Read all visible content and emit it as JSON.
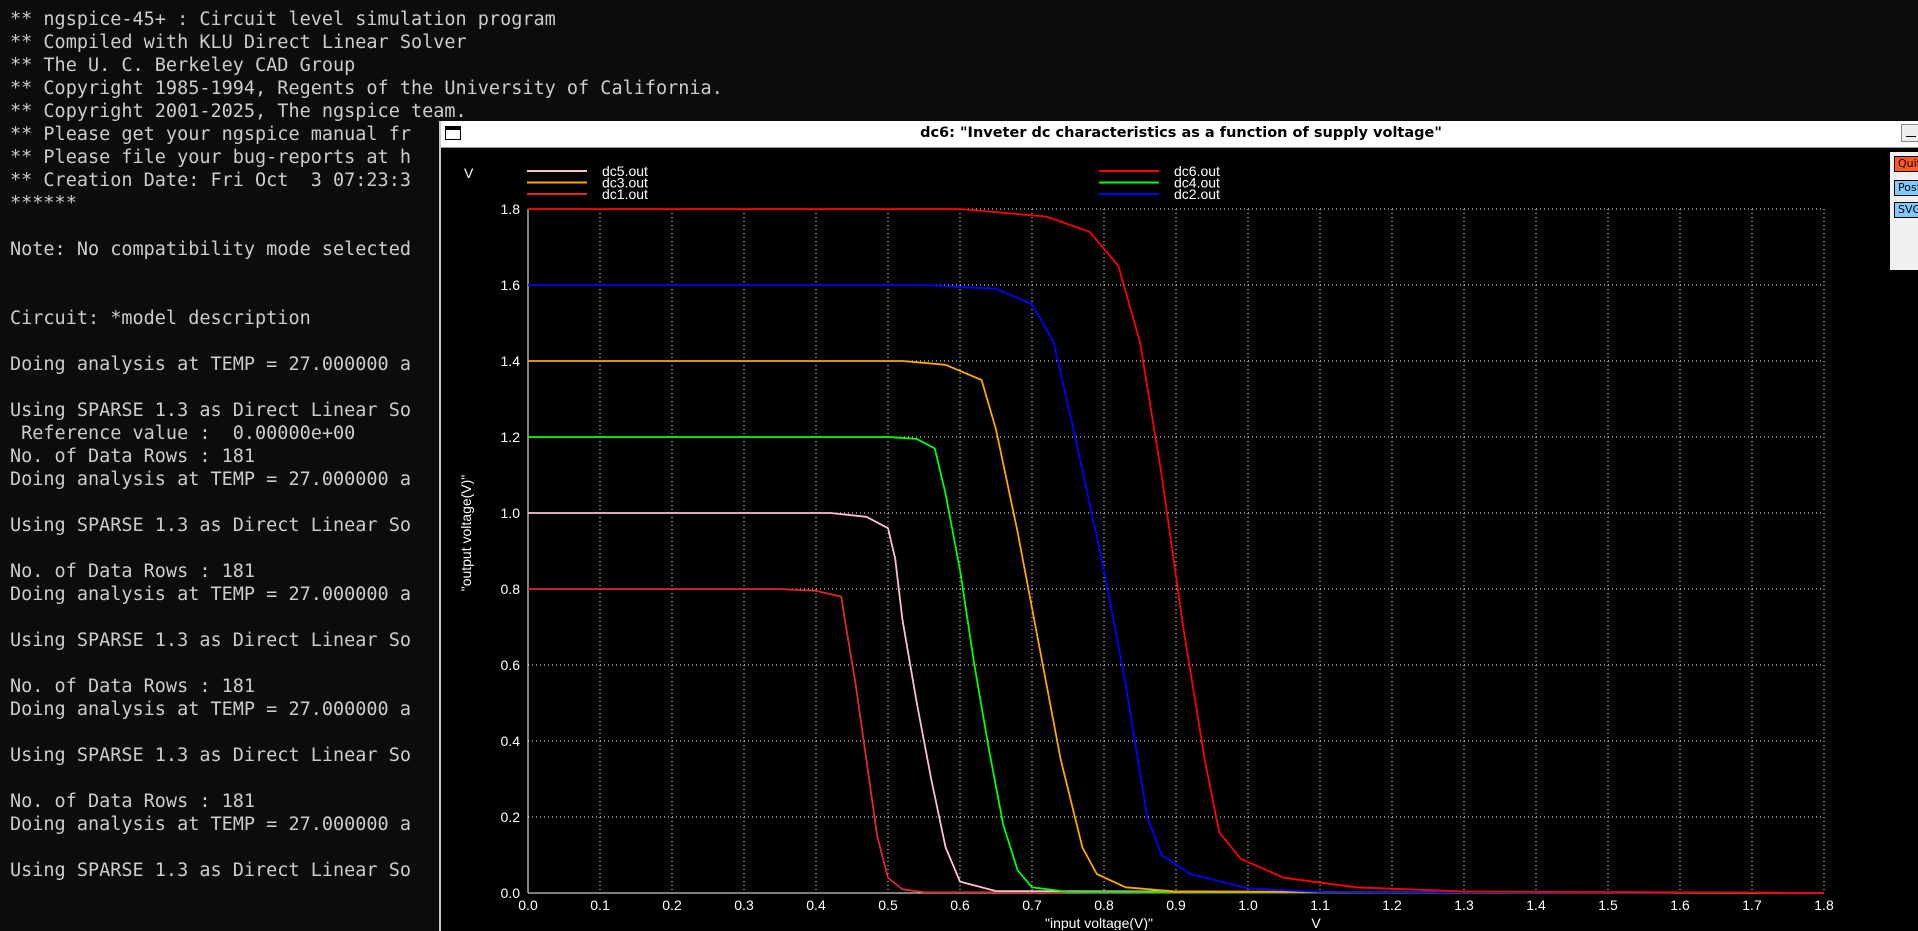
{
  "terminal": {
    "lines": [
      "** ngspice-45+ : Circuit level simulation program",
      "** Compiled with KLU Direct Linear Solver",
      "** The U. C. Berkeley CAD Group",
      "** Copyright 1985-1994, Regents of the University of California.",
      "** Copyright 2001-2025, The ngspice team.",
      "** Please get your ngspice manual fr",
      "** Please file your bug-reports at h",
      "** Creation Date: Fri Oct  3 07:23:3",
      "******",
      "",
      "Note: No compatibility mode selected",
      "",
      "",
      "Circuit: *model description",
      "",
      "Doing analysis at TEMP = 27.000000 a",
      "",
      "Using SPARSE 1.3 as Direct Linear So",
      " Reference value :  0.00000e+00",
      "No. of Data Rows : 181",
      "Doing analysis at TEMP = 27.000000 a",
      "",
      "Using SPARSE 1.3 as Direct Linear So",
      "",
      "No. of Data Rows : 181",
      "Doing analysis at TEMP = 27.000000 a",
      "",
      "Using SPARSE 1.3 as Direct Linear So",
      "",
      "No. of Data Rows : 181",
      "Doing analysis at TEMP = 27.000000 a",
      "",
      "Using SPARSE 1.3 as Direct Linear So",
      "",
      "No. of Data Rows : 181",
      "Doing analysis at TEMP = 27.000000 a",
      "",
      "Using SPARSE 1.3 as Direct Linear So"
    ]
  },
  "plot_window": {
    "title": "dc6: \"Inveter dc characteristics as a function of supply voltage\"",
    "buttons": {
      "quit": "Quit",
      "postscript": "PostScript",
      "svg": "SVG"
    }
  },
  "chart_data": {
    "type": "line",
    "title": "",
    "xlabel": "\"input voltage(V)\"",
    "x_unit": "V",
    "ylabel": "\"output voltage(V)\"",
    "y_unit": "V",
    "xlim": [
      0,
      1.8
    ],
    "ylim": [
      0,
      1.8
    ],
    "x_ticks": [
      "0.0",
      "0.1",
      "0.2",
      "0.3",
      "0.4",
      "0.5",
      "0.6",
      "0.7",
      "0.8",
      "0.9",
      "1.0",
      "1.1",
      "1.2",
      "1.3",
      "1.4",
      "1.5",
      "1.6",
      "1.7",
      "1.8"
    ],
    "y_ticks": [
      "0.0",
      "0.2",
      "0.4",
      "0.6",
      "0.8",
      "1.0",
      "1.2",
      "1.4",
      "1.6",
      "1.8"
    ],
    "grid": true,
    "grid_style": "dotted",
    "background": "#000000",
    "axis_color": "#ffffff",
    "legend": [
      {
        "name": "dc5.out",
        "color": "#ffc0cb"
      },
      {
        "name": "dc3.out",
        "color": "#ffa500"
      },
      {
        "name": "dc1.out",
        "color": "#dd2a2a"
      },
      {
        "name": "dc6.out",
        "color": "#ff0000"
      },
      {
        "name": "dc4.out",
        "color": "#00ff00"
      },
      {
        "name": "dc2.out",
        "color": "#0000ff"
      }
    ],
    "series": [
      {
        "name": "dc1.out",
        "color": "#dd2a2a",
        "points": [
          [
            0,
            0.8
          ],
          [
            0.35,
            0.8
          ],
          [
            0.4,
            0.795
          ],
          [
            0.435,
            0.78
          ],
          [
            0.44,
            0.72
          ],
          [
            0.455,
            0.55
          ],
          [
            0.47,
            0.35
          ],
          [
            0.485,
            0.15
          ],
          [
            0.5,
            0.04
          ],
          [
            0.52,
            0.01
          ],
          [
            0.55,
            0.002
          ],
          [
            1.8,
            0
          ]
        ]
      },
      {
        "name": "dc5.out",
        "color": "#ffc0cb",
        "points": [
          [
            0,
            1.0
          ],
          [
            0.42,
            1.0
          ],
          [
            0.47,
            0.99
          ],
          [
            0.5,
            0.96
          ],
          [
            0.51,
            0.88
          ],
          [
            0.52,
            0.72
          ],
          [
            0.54,
            0.5
          ],
          [
            0.56,
            0.3
          ],
          [
            0.58,
            0.12
          ],
          [
            0.6,
            0.03
          ],
          [
            0.65,
            0.005
          ],
          [
            1.8,
            0
          ]
        ]
      },
      {
        "name": "dc4.out",
        "color": "#00ff00",
        "points": [
          [
            0,
            1.2
          ],
          [
            0.5,
            1.2
          ],
          [
            0.54,
            1.195
          ],
          [
            0.565,
            1.17
          ],
          [
            0.58,
            1.05
          ],
          [
            0.6,
            0.85
          ],
          [
            0.62,
            0.6
          ],
          [
            0.64,
            0.38
          ],
          [
            0.66,
            0.18
          ],
          [
            0.68,
            0.06
          ],
          [
            0.7,
            0.015
          ],
          [
            0.75,
            0.003
          ],
          [
            1.8,
            0
          ]
        ]
      },
      {
        "name": "dc3.out",
        "color": "#ffa500",
        "points": [
          [
            0,
            1.4
          ],
          [
            0.52,
            1.4
          ],
          [
            0.58,
            1.39
          ],
          [
            0.63,
            1.35
          ],
          [
            0.65,
            1.22
          ],
          [
            0.68,
            0.95
          ],
          [
            0.71,
            0.65
          ],
          [
            0.74,
            0.35
          ],
          [
            0.77,
            0.12
          ],
          [
            0.79,
            0.05
          ],
          [
            0.83,
            0.015
          ],
          [
            0.9,
            0.004
          ],
          [
            1.8,
            0
          ]
        ]
      },
      {
        "name": "dc2.out",
        "color": "#0000ff",
        "points": [
          [
            0,
            1.6
          ],
          [
            0.55,
            1.6
          ],
          [
            0.65,
            1.59
          ],
          [
            0.7,
            1.55
          ],
          [
            0.73,
            1.45
          ],
          [
            0.76,
            1.2
          ],
          [
            0.8,
            0.85
          ],
          [
            0.83,
            0.55
          ],
          [
            0.86,
            0.2
          ],
          [
            0.88,
            0.1
          ],
          [
            0.92,
            0.05
          ],
          [
            1.0,
            0.012
          ],
          [
            1.1,
            0.003
          ],
          [
            1.8,
            0
          ]
        ]
      },
      {
        "name": "dc6.out",
        "color": "#ff0000",
        "points": [
          [
            0,
            1.8
          ],
          [
            0.6,
            1.8
          ],
          [
            0.72,
            1.78
          ],
          [
            0.78,
            1.74
          ],
          [
            0.82,
            1.65
          ],
          [
            0.85,
            1.45
          ],
          [
            0.88,
            1.1
          ],
          [
            0.91,
            0.7
          ],
          [
            0.94,
            0.35
          ],
          [
            0.96,
            0.16
          ],
          [
            0.99,
            0.09
          ],
          [
            1.05,
            0.04
          ],
          [
            1.15,
            0.015
          ],
          [
            1.3,
            0.004
          ],
          [
            1.8,
            0
          ]
        ]
      }
    ]
  }
}
